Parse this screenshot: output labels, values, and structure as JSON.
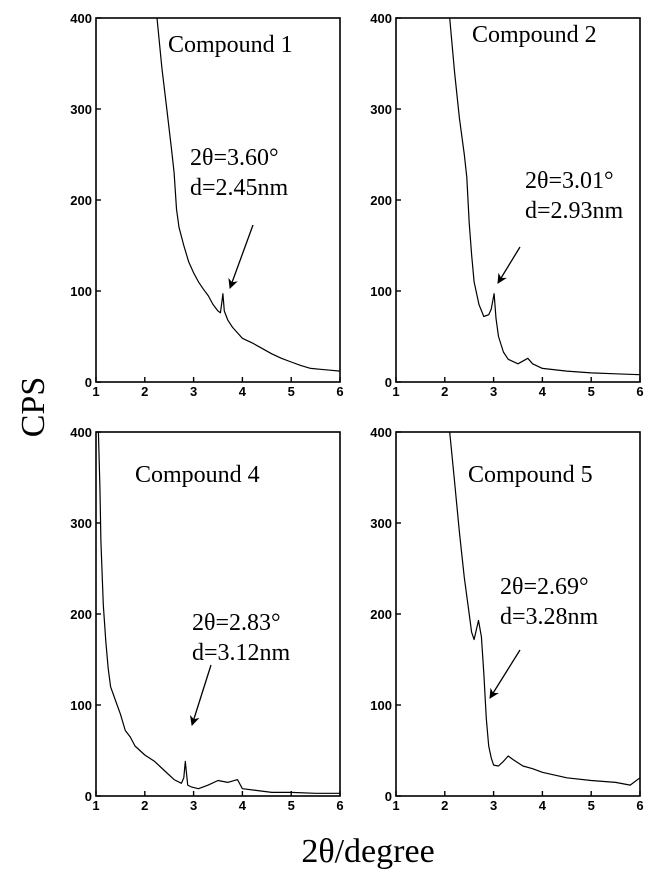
{
  "ylabel": "CPS",
  "xlabel": "2θ/degree",
  "chart_data": [
    {
      "type": "line",
      "title": "Compound 1",
      "xlim": [
        1,
        6
      ],
      "ylim": [
        0,
        400
      ],
      "xticks": [
        1,
        2,
        3,
        4,
        5,
        6
      ],
      "yticks": [
        0,
        100,
        200,
        300,
        400
      ],
      "annotation": [
        "2θ=3.60°",
        "d=2.45nm"
      ],
      "peak": [
        3.6,
        97
      ],
      "series": [
        {
          "x": [
            2.25,
            2.35,
            2.45,
            2.55,
            2.6,
            2.65,
            2.7,
            2.8,
            2.9,
            3.0,
            3.1,
            3.2,
            3.3,
            3.4,
            3.5,
            3.55,
            3.58,
            3.6,
            3.63,
            3.7,
            3.8,
            3.9,
            4.0,
            4.2,
            4.4,
            4.6,
            4.8,
            5.0,
            5.2,
            5.4,
            5.6,
            5.8,
            6.0
          ],
          "y": [
            400,
            345,
            300,
            255,
            230,
            190,
            170,
            150,
            132,
            120,
            110,
            102,
            95,
            85,
            78,
            76,
            88,
            97,
            78,
            68,
            60,
            54,
            48,
            43,
            37,
            31,
            26,
            22,
            18,
            15,
            14,
            13,
            12
          ]
        }
      ]
    },
    {
      "type": "line",
      "title": "Compound 2",
      "xlim": [
        1,
        6
      ],
      "ylim": [
        0,
        400
      ],
      "xticks": [
        1,
        2,
        3,
        4,
        5,
        6
      ],
      "yticks": [
        0,
        100,
        200,
        300,
        400
      ],
      "annotation": [
        "2θ=3.01°",
        "d=2.93nm"
      ],
      "peak": [
        3.01,
        97
      ],
      "series": [
        {
          "x": [
            2.1,
            2.2,
            2.3,
            2.4,
            2.45,
            2.5,
            2.55,
            2.6,
            2.7,
            2.8,
            2.9,
            2.95,
            3.01,
            3.05,
            3.1,
            3.2,
            3.3,
            3.5,
            3.7,
            3.8,
            4.0,
            4.5,
            5.0,
            5.5,
            6.0
          ],
          "y": [
            400,
            340,
            290,
            250,
            225,
            175,
            140,
            110,
            85,
            72,
            74,
            80,
            97,
            70,
            50,
            33,
            25,
            20,
            26,
            20,
            15,
            12,
            10,
            9,
            8
          ]
        }
      ]
    },
    {
      "type": "line",
      "title": "Compound 4",
      "xlim": [
        1,
        6
      ],
      "ylim": [
        0,
        400
      ],
      "xticks": [
        1,
        2,
        3,
        4,
        5,
        6
      ],
      "yticks": [
        0,
        100,
        200,
        300,
        400
      ],
      "annotation": [
        "2θ=2.83°",
        "d=3.12nm"
      ],
      "peak": [
        2.83,
        38
      ],
      "series": [
        {
          "x": [
            1.05,
            1.08,
            1.1,
            1.15,
            1.2,
            1.25,
            1.3,
            1.4,
            1.5,
            1.6,
            1.7,
            1.8,
            2.0,
            2.2,
            2.4,
            2.6,
            2.75,
            2.8,
            2.83,
            2.88,
            2.95,
            3.1,
            3.3,
            3.5,
            3.7,
            3.9,
            4.0,
            4.3,
            4.6,
            5.0,
            5.5,
            6.0
          ],
          "y": [
            400,
            340,
            280,
            210,
            170,
            140,
            120,
            105,
            90,
            72,
            65,
            55,
            45,
            38,
            28,
            18,
            14,
            20,
            38,
            12,
            10,
            8,
            12,
            17,
            15,
            18,
            8,
            6,
            4,
            4,
            3,
            3
          ]
        }
      ]
    },
    {
      "type": "line",
      "title": "Compound 5",
      "xlim": [
        1,
        6
      ],
      "ylim": [
        0,
        400
      ],
      "xticks": [
        1,
        2,
        3,
        4,
        5,
        6
      ],
      "yticks": [
        0,
        100,
        200,
        300,
        400
      ],
      "annotation": [
        "2θ=2.69°",
        "d=3.28nm"
      ],
      "peak": [
        2.69,
        193
      ],
      "series": [
        {
          "x": [
            2.1,
            2.2,
            2.3,
            2.4,
            2.5,
            2.55,
            2.6,
            2.69,
            2.75,
            2.8,
            2.85,
            2.9,
            2.95,
            3.0,
            3.1,
            3.2,
            3.3,
            3.4,
            3.6,
            3.8,
            4.0,
            4.5,
            5.0,
            5.5,
            5.8,
            6.0
          ],
          "y": [
            400,
            345,
            290,
            240,
            200,
            180,
            172,
            193,
            175,
            135,
            85,
            55,
            42,
            34,
            33,
            38,
            44,
            40,
            33,
            30,
            26,
            20,
            17,
            15,
            12,
            20
          ]
        }
      ]
    }
  ]
}
